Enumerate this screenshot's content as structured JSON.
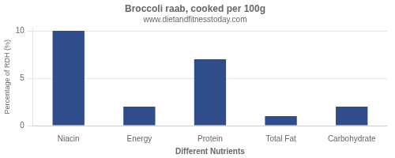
{
  "chart_data": {
    "type": "bar",
    "title": "Broccoli raab, cooked per 100g",
    "subtitle": "www.dietandfitnesstoday.com",
    "xlabel": "Different Nutrients",
    "ylabel": "Percentage of RDH (%)",
    "categories": [
      "Niacin",
      "Energy",
      "Protein",
      "Total Fat",
      "Carbohydrate"
    ],
    "values": [
      10,
      2,
      7,
      1,
      2
    ],
    "color": "#2e4d8a",
    "ylim": [
      0,
      10.3
    ],
    "yticks": [
      0,
      5,
      10
    ],
    "grid": true
  }
}
